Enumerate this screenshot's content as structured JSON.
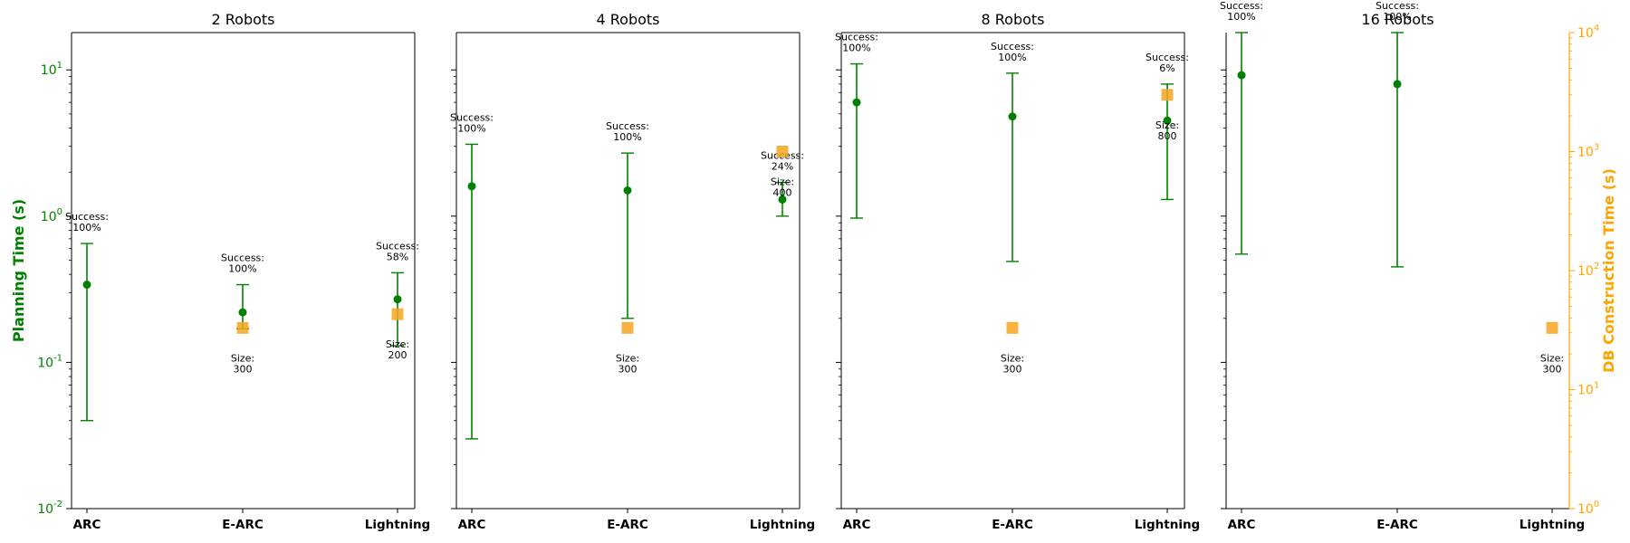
{
  "chart_data": {
    "type": "scatter",
    "categories": [
      "ARC",
      "E-ARC",
      "Lightning"
    ],
    "left_axis": {
      "label": "Planning Time (s)",
      "scale": "log",
      "ylim": [
        0.01,
        18
      ],
      "ticks": [
        0.01,
        0.1,
        1,
        10
      ],
      "color": "#008000"
    },
    "right_axis": {
      "label": "DB Construction Time (s)",
      "scale": "log",
      "ylim": [
        1,
        10000
      ],
      "ticks": [
        1,
        10,
        100,
        1000,
        10000
      ],
      "color": "#FFA500"
    },
    "grid": false,
    "colors": {
      "planning": "#008000",
      "db": "#F5A623"
    },
    "panels": [
      {
        "title": "2 Robots",
        "planning": [
          {
            "category": "ARC",
            "mean": 0.34,
            "low": 0.04,
            "high": 0.65
          },
          {
            "category": "E-ARC",
            "mean": 0.22,
            "low": 0.17,
            "high": 0.34
          },
          {
            "category": "Lightning",
            "mean": 0.27,
            "low": 0.13,
            "high": 0.41
          }
        ],
        "success": [
          {
            "category": "ARC",
            "label": "Success:",
            "value": "100%"
          },
          {
            "category": "E-ARC",
            "label": "Success:",
            "value": "100%"
          },
          {
            "category": "Lightning",
            "label": "Success:",
            "value": "58%"
          }
        ],
        "db": [
          {
            "category": "E-ARC",
            "value": 33,
            "label": "Size:",
            "size": "300"
          },
          {
            "category": "Lightning",
            "value": 43,
            "label": "Size:",
            "size": "200"
          }
        ]
      },
      {
        "title": "4 Robots",
        "planning": [
          {
            "category": "ARC",
            "mean": 1.6,
            "low": 0.03,
            "high": 3.1
          },
          {
            "category": "E-ARC",
            "mean": 1.5,
            "low": 0.2,
            "high": 2.7
          },
          {
            "category": "Lightning",
            "mean": 1.3,
            "low": 1.0,
            "high": 1.7
          }
        ],
        "success": [
          {
            "category": "ARC",
            "label": "Success:",
            "value": "100%"
          },
          {
            "category": "E-ARC",
            "label": "Success:",
            "value": "100%"
          },
          {
            "category": "Lightning",
            "label": "Success:",
            "value": "24%"
          }
        ],
        "db": [
          {
            "category": "E-ARC",
            "value": 33,
            "label": "Size:",
            "size": "300"
          },
          {
            "category": "Lightning",
            "value": 1000,
            "label": "Size:",
            "size": "400"
          }
        ]
      },
      {
        "title": "8 Robots",
        "planning": [
          {
            "category": "ARC",
            "mean": 6.0,
            "low": 0.97,
            "high": 11
          },
          {
            "category": "E-ARC",
            "mean": 4.8,
            "low": 0.49,
            "high": 9.5
          },
          {
            "category": "Lightning",
            "mean": 4.5,
            "low": 1.3,
            "high": 8.0
          }
        ],
        "success": [
          {
            "category": "ARC",
            "label": "Success:",
            "value": "100%"
          },
          {
            "category": "E-ARC",
            "label": "Success:",
            "value": "100%"
          },
          {
            "category": "Lightning",
            "label": "Success:",
            "value": "6%"
          }
        ],
        "db": [
          {
            "category": "E-ARC",
            "value": 33,
            "label": "Size:",
            "size": "300"
          },
          {
            "category": "Lightning",
            "value": 3000,
            "label": "Size:",
            "size": "800"
          }
        ]
      },
      {
        "title": "16 Robots",
        "planning": [
          {
            "category": "ARC",
            "mean": 9.2,
            "low": 0.55,
            "high": 18
          },
          {
            "category": "E-ARC",
            "mean": 8.0,
            "low": 0.45,
            "high": 18
          }
        ],
        "success": [
          {
            "category": "ARC",
            "label": "Success:",
            "value": "100%"
          },
          {
            "category": "E-ARC",
            "label": "Success:",
            "value": "100%"
          }
        ],
        "db": [
          {
            "category": "Lightning",
            "value": 33,
            "label": "Size:",
            "size": "300"
          }
        ]
      }
    ]
  }
}
